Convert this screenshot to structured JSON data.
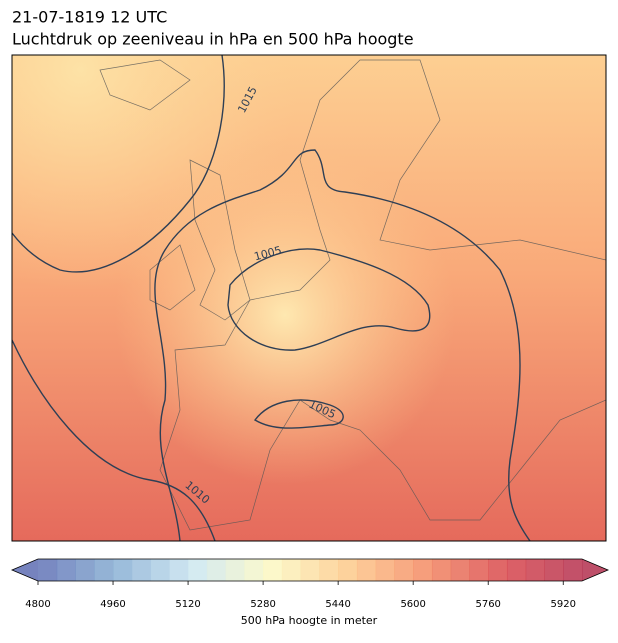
{
  "title": "21-07-1819 12 UTC",
  "subtitle": "Luchtdruk op zeeniveau in hPa en 500 hPa hoogte",
  "contour_labels": [
    "1015",
    "1005",
    "1005",
    "1010"
  ],
  "colorbar": {
    "label": "500 hPa hoogte in meter",
    "lim": [
      4800,
      5960
    ],
    "step": 40,
    "ticks": [
      4800,
      4960,
      5120,
      5280,
      5440,
      5600,
      5760,
      5920
    ],
    "colors": [
      "#5e6db3",
      "#86aed3",
      "#cbe6f0",
      "#fcf8c2",
      "#fdc98a",
      "#f48a63",
      "#d9474b",
      "#b3304f"
    ]
  }
}
